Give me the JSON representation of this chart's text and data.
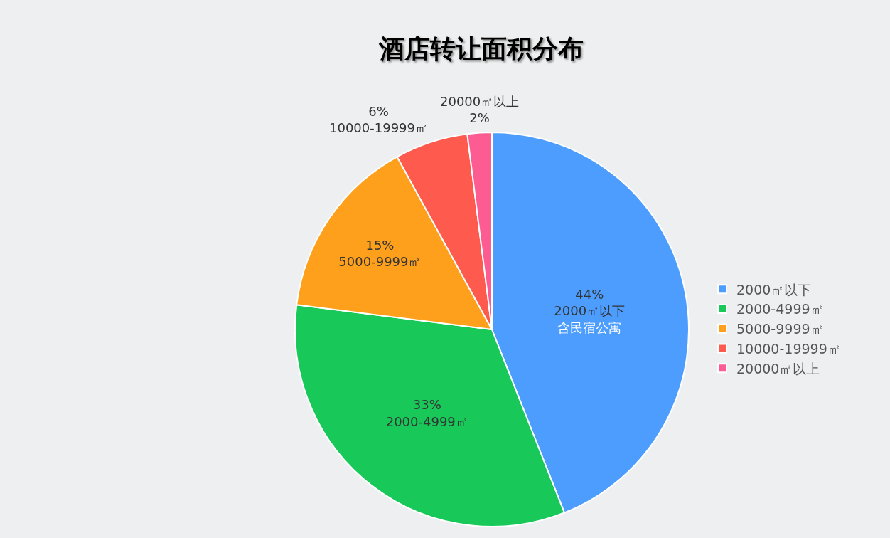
{
  "chart_data": {
    "type": "pie",
    "title": "酒店转让面积分布",
    "categories": [
      "2000㎡以下",
      "2000-4999㎡",
      "5000-9999㎡",
      "10000-19999㎡",
      "20000㎡以上"
    ],
    "values": [
      44,
      33,
      15,
      6,
      2
    ],
    "colors": [
      "#4d9dff",
      "#18c95a",
      "#ffa01c",
      "#ff5a4e",
      "#fc5c92"
    ],
    "value_labels": [
      "44%\n2000㎡以下",
      "33%\n2000-4999㎡",
      "15%\n5000-9999㎡",
      "6%\n10000-19999㎡",
      "20000㎡以上\n2%"
    ],
    "annotations": [
      {
        "text": "含民宿公寓",
        "x": "2000㎡以下"
      }
    ],
    "legend": "right"
  }
}
